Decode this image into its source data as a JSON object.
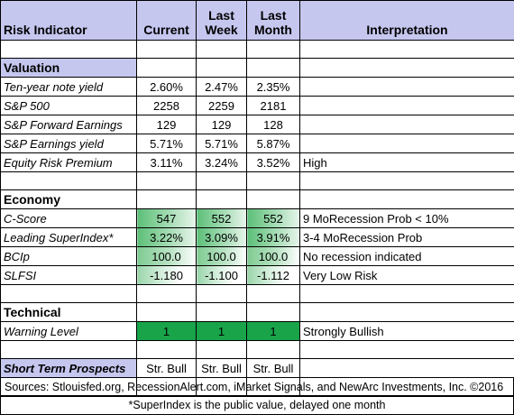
{
  "headers": {
    "indicator": "Risk Indicator",
    "current": "Current",
    "last_week_1": "Last",
    "last_week_2": "Week",
    "last_month_1": "Last",
    "last_month_2": "Month",
    "interpretation": "Interpretation"
  },
  "sections": {
    "valuation": "Valuation",
    "economy": "Economy",
    "technical": "Technical"
  },
  "valuation_rows": [
    {
      "label": "Ten-year note yield",
      "current": "2.60%",
      "last_week": "2.47%",
      "last_month": "2.35%",
      "interpretation": ""
    },
    {
      "label": "S&P 500",
      "current": "2258",
      "last_week": "2259",
      "last_month": "2181",
      "interpretation": ""
    },
    {
      "label": "S&P Forward Earnings",
      "current": "129",
      "last_week": "129",
      "last_month": "128",
      "interpretation": ""
    },
    {
      "label": "S&P Earnings yield",
      "current": "5.71%",
      "last_week": "5.71%",
      "last_month": "5.87%",
      "interpretation": ""
    },
    {
      "label": "Equity Risk Premium",
      "current": "3.11%",
      "last_week": "3.24%",
      "last_month": "3.52%",
      "interpretation": "High"
    }
  ],
  "economy_rows": [
    {
      "label": "C-Score",
      "current": "547",
      "last_week": "552",
      "last_month": "552",
      "interpretation": "9 MoRecession Prob < 10%"
    },
    {
      "label": "Leading SuperIndex*",
      "current": "3.22%",
      "last_week": "3.09%",
      "last_month": "3.91%",
      "interpretation": "3-4 MoRecession Prob"
    },
    {
      "label": "BCIp",
      "current": "100.0",
      "last_week": "100.0",
      "last_month": "100.0",
      "interpretation": "No recession indicated"
    },
    {
      "label": "SLFSI",
      "current": "-1.180",
      "last_week": "-1.100",
      "last_month": "-1.112",
      "interpretation": "Very Low Risk"
    }
  ],
  "technical_rows": [
    {
      "label": "Warning Level",
      "current": "1",
      "last_week": "1",
      "last_month": "1",
      "interpretation": "Strongly Bullish"
    }
  ],
  "prospects": {
    "label": "Short Term Prospects",
    "current": "Str. Bull",
    "last_week": "Str. Bull",
    "last_month": "Str. Bull",
    "interpretation": ""
  },
  "sources": "Sources: Stlouisfed.org, RecessionAlert.com, iMarket Signals, and NewArc Investments, Inc. ©2016",
  "footnote": "*SuperIndex is the public value, delayed one month",
  "colors": {
    "header_band": "#c5c7ef",
    "strong_green": "#19a44a",
    "gradient_green": "#5cbf78"
  }
}
